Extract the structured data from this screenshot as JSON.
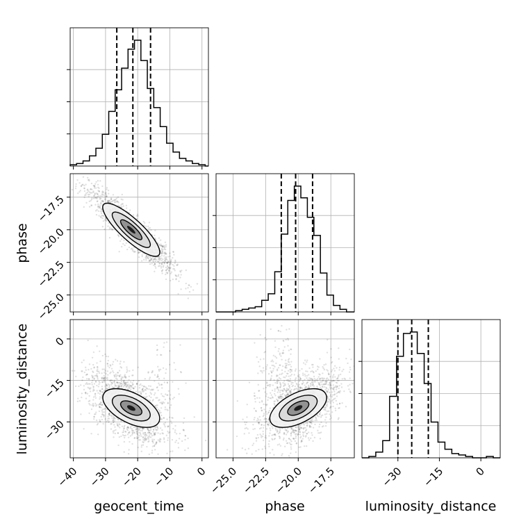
{
  "chart_data": {
    "type": "corner",
    "parameters": [
      "geocent_time",
      "phase",
      "luminosity_distance"
    ],
    "axes": {
      "geocent_time": {
        "range": [
          -41,
          2
        ],
        "ticks": [
          -40,
          -30,
          -20,
          -10,
          0
        ],
        "tick_labels": [
          "−40",
          "−30",
          "−20",
          "−10",
          "0"
        ]
      },
      "phase": {
        "range": [
          -26.3,
          -15.7
        ],
        "ticks": [
          -25.0,
          -22.5,
          -20.0,
          -17.5
        ],
        "tick_labels": [
          "−25.0",
          "−22.5",
          "−20.0",
          "−17.5"
        ]
      },
      "luminosity_distance": {
        "range": [
          -43,
          7
        ],
        "ticks": [
          -30,
          -15,
          0
        ],
        "tick_labels": [
          "−30",
          "−15",
          "0"
        ]
      }
    },
    "histograms": {
      "geocent_time": {
        "bin_edges": [
          -41,
          -39,
          -37,
          -35,
          -33,
          -31,
          -29,
          -27,
          -25,
          -23,
          -21,
          -19,
          -17,
          -15,
          -13,
          -11,
          -9,
          -7,
          -5,
          -3,
          -1,
          1,
          2
        ],
        "counts": [
          0.01,
          0.02,
          0.04,
          0.08,
          0.14,
          0.25,
          0.43,
          0.6,
          0.77,
          0.92,
          0.99,
          0.83,
          0.61,
          0.46,
          0.31,
          0.18,
          0.11,
          0.06,
          0.04,
          0.02,
          0.01,
          0.0
        ],
        "quantiles": [
          -26.5,
          -21.5,
          -16.0
        ]
      },
      "phase": {
        "bin_edges": [
          -26.3,
          -25.8,
          -25.3,
          -24.8,
          -24.3,
          -23.8,
          -23.3,
          -22.8,
          -22.3,
          -21.8,
          -21.3,
          -20.8,
          -20.3,
          -19.8,
          -19.3,
          -18.8,
          -18.3,
          -17.8,
          -17.3,
          -16.8,
          -16.3,
          -15.7
        ],
        "counts": [
          0.0,
          0.0,
          0.0,
          0.01,
          0.02,
          0.03,
          0.04,
          0.09,
          0.14,
          0.31,
          0.6,
          0.86,
          0.97,
          0.88,
          0.73,
          0.59,
          0.3,
          0.13,
          0.05,
          0.02,
          0.0
        ],
        "quantiles": [
          -21.3,
          -20.2,
          -18.9
        ]
      },
      "luminosity_distance": {
        "bin_edges": [
          -43,
          -40.5,
          -38,
          -35.5,
          -33,
          -30.5,
          -28,
          -25.5,
          -23,
          -20.5,
          -18,
          -15.5,
          -13,
          -10.5,
          -8,
          -5.5,
          -3,
          -0.5,
          2,
          4.5,
          7
        ],
        "counts": [
          0.0,
          0.01,
          0.04,
          0.12,
          0.43,
          0.71,
          0.87,
          0.88,
          0.73,
          0.52,
          0.25,
          0.11,
          0.06,
          0.03,
          0.02,
          0.01,
          0.0,
          0.0,
          0.01,
          0.0
        ],
        "quantiles": [
          -30,
          -25,
          -19
        ]
      }
    },
    "correlations": {
      "phase_vs_geocent_time": {
        "mean": [
          -22,
          -20.0
        ],
        "std": [
          6.5,
          1.6
        ],
        "rho": -0.92
      },
      "luminosity_distance_vs_geocent_time": {
        "mean": [
          -22,
          -25
        ],
        "std": [
          6.5,
          7.0
        ],
        "rho": -0.55
      },
      "luminosity_distance_vs_phase": {
        "mean": [
          -20.0,
          -25
        ],
        "std": [
          1.6,
          7.0
        ],
        "rho": 0.55
      }
    },
    "grid": true,
    "colors": {
      "line": "#000000",
      "grid": "#b0b0b0",
      "points": "#000000"
    }
  }
}
